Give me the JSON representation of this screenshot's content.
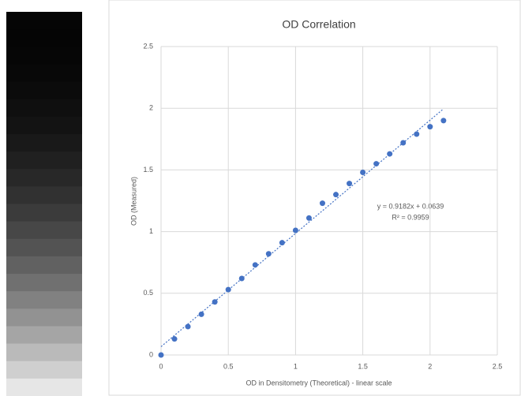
{
  "chart_data": {
    "type": "scatter",
    "title": "OD Correlation",
    "x_label": "OD in Densitometry (Theoretical) - linear scale",
    "y_label": "OD (Measured)",
    "annotations": [
      "y = 0.9182x + 0.0639",
      "R² = 0.9959"
    ],
    "series": [
      {
        "name": "OD",
        "color": "#4472c4",
        "x": [
          0,
          0.1,
          0.2,
          0.3,
          0.4,
          0.5,
          0.6,
          0.7,
          0.8,
          0.9,
          1.0,
          1.1,
          1.2,
          1.3,
          1.4,
          1.5,
          1.6,
          1.7,
          1.8,
          1.9,
          2.0,
          2.1
        ],
        "values": [
          0,
          0.13,
          0.23,
          0.33,
          0.43,
          0.53,
          0.62,
          0.73,
          0.82,
          0.91,
          1.01,
          1.11,
          1.23,
          1.3,
          1.39,
          1.48,
          1.55,
          1.63,
          1.72,
          1.79,
          1.85,
          1.9
        ]
      }
    ],
    "trendline": true,
    "xlim": [
      0,
      2.5
    ],
    "xticks": [
      0,
      0.5,
      1,
      1.5,
      2,
      2.5
    ],
    "ylim": [
      0,
      2.5
    ],
    "yticks": [
      0,
      0.5,
      1,
      1.5,
      2,
      2.5
    ],
    "grid": true
  }
}
